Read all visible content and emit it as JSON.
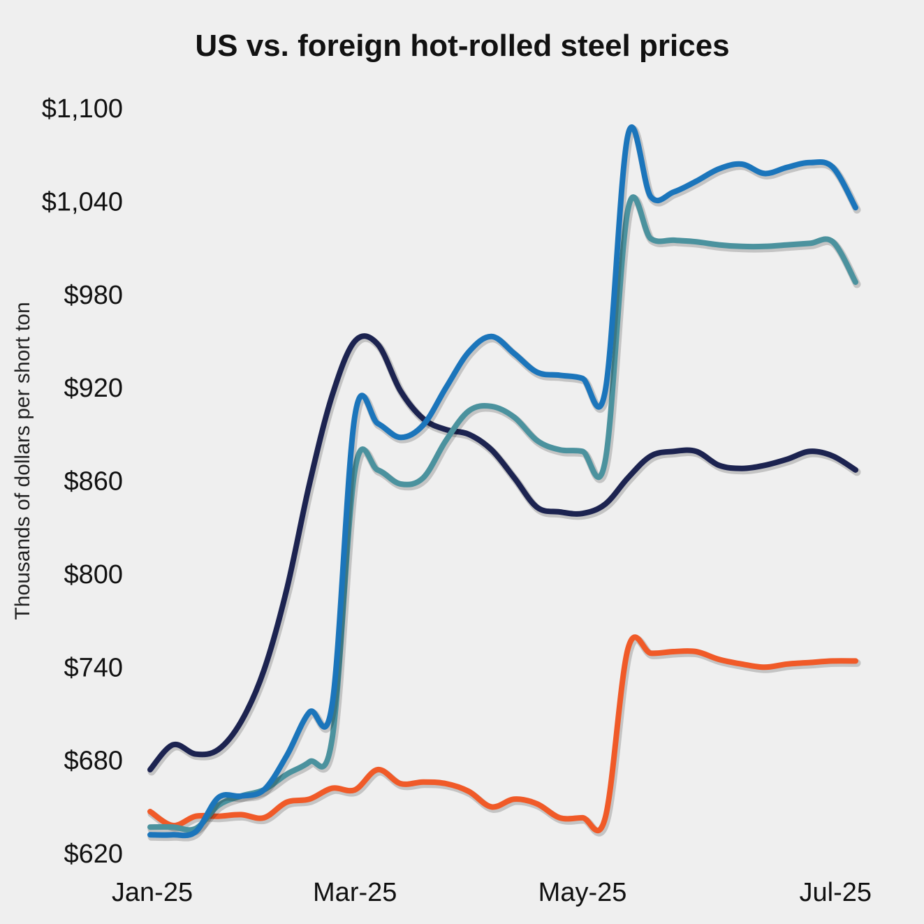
{
  "chart_data": {
    "type": "line",
    "title": "US vs. foreign hot-rolled steel prices",
    "xlabel": "",
    "ylabel": "Thousands of dollars per short ton",
    "ylim": [
      620,
      1100
    ],
    "y_ticks": [
      "$620",
      "$680",
      "$740",
      "$800",
      "$860",
      "$920",
      "$980",
      "$1,040",
      "$1,100"
    ],
    "y_tick_values": [
      620,
      680,
      740,
      800,
      860,
      920,
      980,
      1040,
      1100
    ],
    "x_tick_labels": [
      "Jan-25",
      "Mar-25",
      "May-25",
      "Jul-25"
    ],
    "x_tick_positions": [
      0,
      9,
      19,
      29
    ],
    "xlim": [
      0,
      31
    ],
    "grid": false,
    "legend": "none",
    "series": [
      {
        "color": "#1c2350",
        "x": [
          0,
          1,
          2,
          3,
          4,
          5,
          6,
          7,
          8,
          9,
          10,
          11,
          12,
          13,
          14,
          15,
          16,
          17,
          18,
          19,
          20,
          21,
          22,
          23,
          24,
          25,
          26,
          27,
          28,
          29,
          30,
          31
        ],
        "y": [
          674,
          690,
          684,
          687,
          705,
          738,
          790,
          858,
          915,
          950,
          948,
          918,
          900,
          893,
          890,
          880,
          862,
          843,
          840,
          839,
          845,
          862,
          876,
          879,
          879,
          870,
          868,
          870,
          874,
          879,
          876,
          867
        ]
      },
      {
        "color": "#1b75bb",
        "x": [
          0,
          1,
          2,
          3,
          4,
          5,
          6,
          7,
          8,
          9,
          10,
          11,
          12,
          13,
          14,
          15,
          16,
          17,
          18,
          19,
          20,
          21,
          22,
          23,
          24,
          25,
          26,
          27,
          28,
          29,
          30,
          31
        ],
        "y": [
          632,
          632,
          634,
          656,
          657,
          661,
          683,
          711,
          716,
          902,
          897,
          888,
          896,
          920,
          943,
          953,
          942,
          930,
          928,
          926,
          918,
          1083,
          1043,
          1046,
          1053,
          1061,
          1064,
          1058,
          1062,
          1065,
          1062,
          1036
        ]
      },
      {
        "color": "#4b929e",
        "x": [
          0,
          1,
          2,
          3,
          4,
          5,
          6,
          7,
          8,
          9,
          10,
          11,
          12,
          13,
          14,
          15,
          16,
          17,
          18,
          19,
          20,
          21,
          22,
          23,
          24,
          25,
          26,
          27,
          28,
          29,
          30,
          31
        ],
        "y": [
          637,
          637,
          636,
          651,
          657,
          661,
          671,
          679,
          694,
          867,
          867,
          858,
          862,
          886,
          905,
          908,
          901,
          886,
          880,
          879,
          873,
          1035,
          1016,
          1015,
          1014,
          1012,
          1011,
          1011,
          1012,
          1013,
          1014,
          988
        ]
      },
      {
        "color": "#f05a28",
        "x": [
          0,
          1,
          2,
          3,
          4,
          5,
          6,
          7,
          8,
          9,
          10,
          11,
          12,
          13,
          14,
          15,
          16,
          17,
          18,
          19,
          20,
          21,
          22,
          23,
          24,
          25,
          26,
          27,
          28,
          29,
          30,
          31
        ],
        "y": [
          647,
          638,
          644,
          644,
          645,
          643,
          653,
          655,
          662,
          661,
          674,
          665,
          666,
          665,
          660,
          650,
          655,
          652,
          643,
          643,
          643,
          752,
          749,
          750,
          750,
          745,
          742,
          740,
          742,
          743,
          744,
          744
        ]
      }
    ]
  }
}
